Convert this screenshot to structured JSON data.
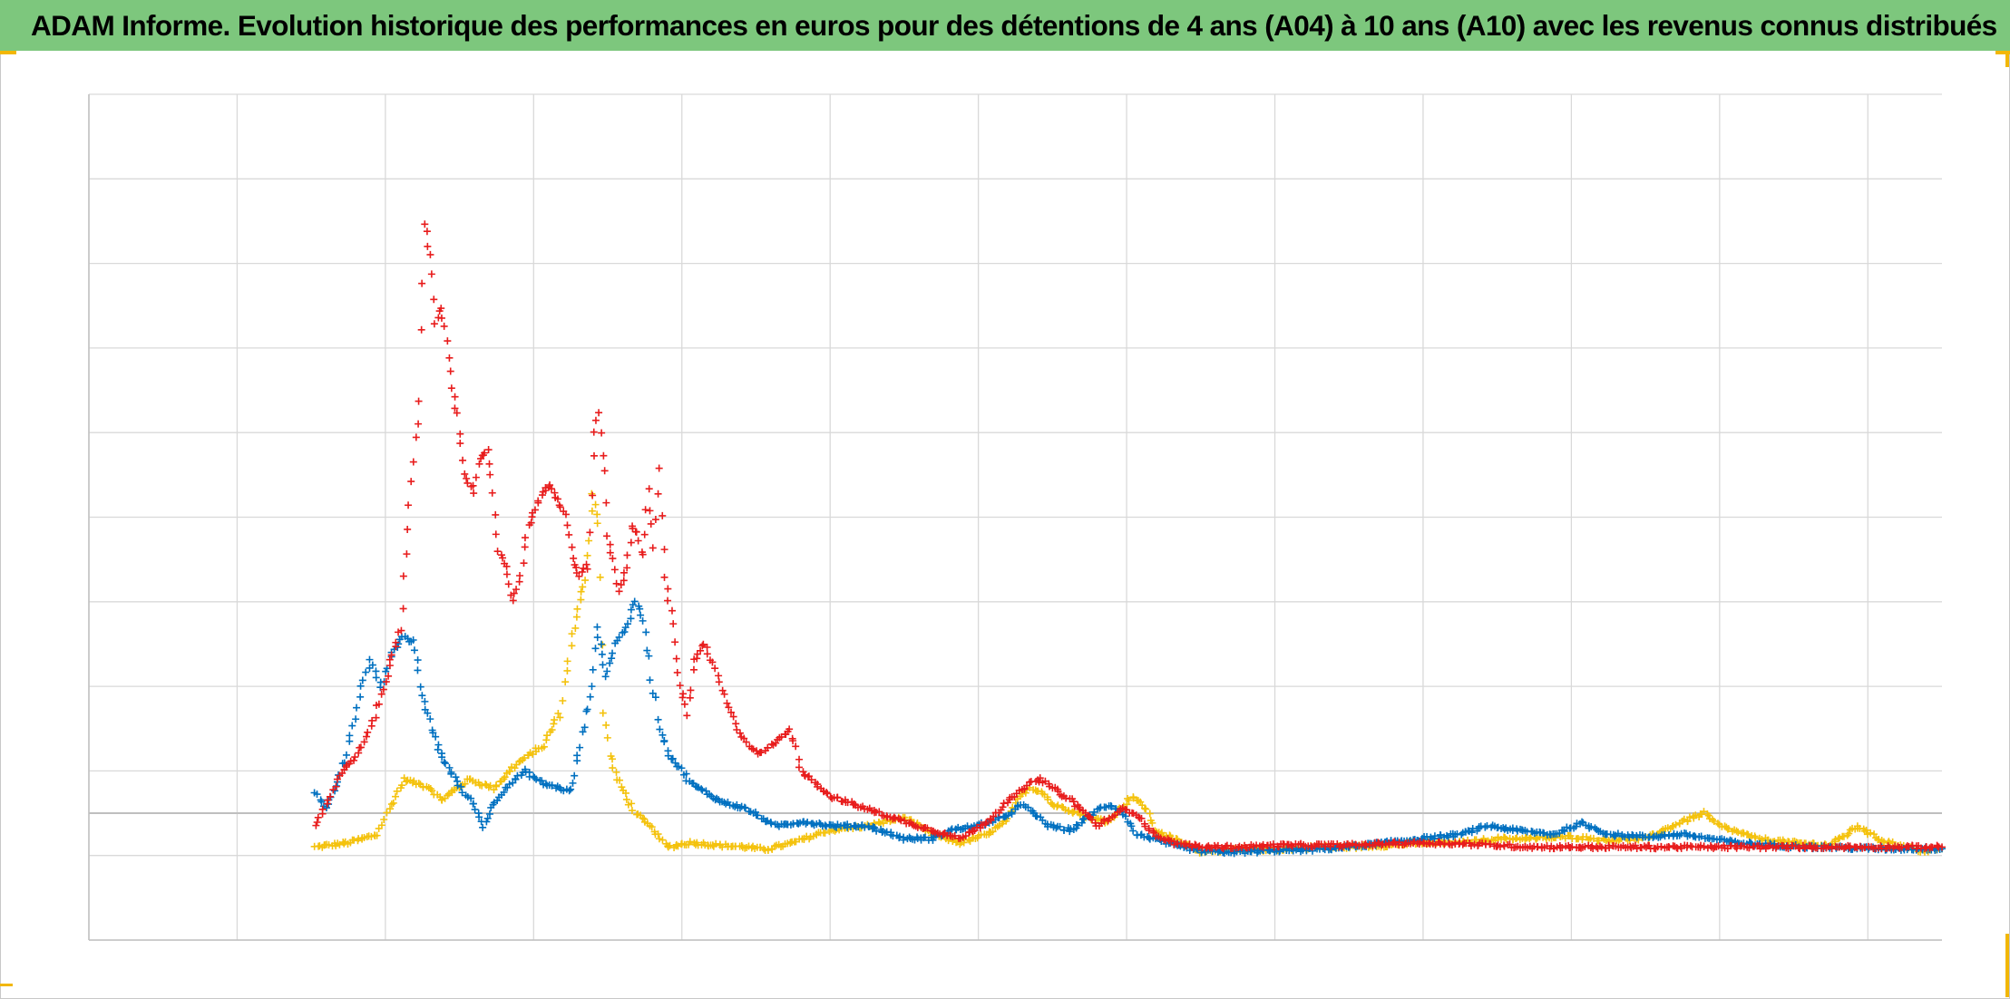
{
  "title": "ADAM Informe. Evolution historique des performances en euros pour des détentions de 4 ans (A04) à 10 ans (A10) avec les revenus connus distribués",
  "colors": {
    "title_bar": "#7dc77d",
    "grid": "#d9d9d9",
    "zero_line": "#bfbfbf",
    "corner_marks": "#f2b705"
  },
  "chart_data": {
    "type": "scatter",
    "marker": "plus",
    "title": "",
    "xlabel": "",
    "ylabel": "",
    "tick_labels_visible": false,
    "legend": "none",
    "grid": true,
    "xlim": [
      0,
      100
    ],
    "ylim": [
      -15,
      85
    ],
    "x_gridlines": [
      0,
      8,
      16,
      24,
      32,
      40,
      48,
      56,
      64,
      72,
      80,
      88,
      96
    ],
    "y_gridlines": [
      -15,
      -5,
      5,
      15,
      25,
      35,
      45,
      55,
      65,
      75,
      85
    ],
    "zero_line": 0,
    "series": [
      {
        "color": "#f4c20d",
        "points": [
          [
            12.2,
            -4.0
          ],
          [
            14,
            -3.5
          ],
          [
            15.6,
            -2.5
          ],
          [
            16.2,
            0.5
          ],
          [
            17.0,
            4.0
          ],
          [
            18.4,
            3.0
          ],
          [
            19.0,
            1.5
          ],
          [
            20.5,
            4.0
          ],
          [
            21.8,
            3.0
          ],
          [
            23.2,
            6.0
          ],
          [
            24.5,
            8.0
          ],
          [
            25.4,
            12.0
          ],
          [
            26.0,
            20.0
          ],
          [
            26.4,
            24.0
          ],
          [
            26.8,
            28.0
          ],
          [
            27.2,
            38.0
          ],
          [
            27.5,
            34.0
          ],
          [
            27.8,
            12.0
          ],
          [
            28.1,
            7.0
          ],
          [
            28.5,
            4.0
          ],
          [
            29.5,
            0.0
          ],
          [
            30.5,
            -2.0
          ],
          [
            31.2,
            -4.0
          ],
          [
            32.5,
            -3.5
          ],
          [
            34,
            -3.8
          ],
          [
            35.5,
            -4.0
          ],
          [
            36.5,
            -4.3
          ],
          [
            38,
            -3.5
          ],
          [
            40,
            -2.0
          ],
          [
            42,
            -1.5
          ],
          [
            44,
            -0.5
          ],
          [
            45.5,
            -2.5
          ],
          [
            47,
            -3.5
          ],
          [
            48.5,
            -2.5
          ],
          [
            49.5,
            -1.0
          ],
          [
            50.2,
            2.0
          ],
          [
            50.8,
            3.0
          ],
          [
            51.5,
            2.5
          ],
          [
            52,
            1.0
          ],
          [
            52.8,
            0.5
          ],
          [
            54,
            -0.5
          ],
          [
            55,
            -1.0
          ],
          [
            56.3,
            2.0
          ],
          [
            57.1,
            0.5
          ],
          [
            57.5,
            -2.0
          ],
          [
            58.5,
            -3.0
          ],
          [
            60,
            -4.5
          ],
          [
            62,
            -4.3
          ],
          [
            64,
            -4.3
          ],
          [
            66,
            -4.0
          ],
          [
            68,
            -4.0
          ],
          [
            70,
            -3.8
          ],
          [
            72,
            -3.5
          ],
          [
            74,
            -3.5
          ],
          [
            76,
            -3.0
          ],
          [
            78,
            -3.0
          ],
          [
            80,
            -2.8
          ],
          [
            82,
            -3.2
          ],
          [
            84,
            -3.0
          ],
          [
            86,
            -1.0
          ],
          [
            87.2,
            0.0
          ],
          [
            88,
            -1.5
          ],
          [
            90,
            -3.0
          ],
          [
            92,
            -3.5
          ],
          [
            94,
            -3.8
          ],
          [
            95.5,
            -1.5
          ],
          [
            96.5,
            -3.0
          ],
          [
            98,
            -4.0
          ],
          [
            99,
            -4.5
          ],
          [
            100,
            -4.2
          ]
        ]
      },
      {
        "color": "#0070c0",
        "points": [
          [
            12.2,
            2.5
          ],
          [
            12.8,
            0.5
          ],
          [
            13.3,
            3.0
          ],
          [
            14.0,
            8.0
          ],
          [
            14.6,
            14.0
          ],
          [
            15.2,
            18.0
          ],
          [
            15.8,
            15.0
          ],
          [
            16.4,
            19.0
          ],
          [
            16.9,
            21.0
          ],
          [
            17.5,
            20.0
          ],
          [
            18.0,
            14.0
          ],
          [
            18.5,
            10.0
          ],
          [
            19.0,
            7.0
          ],
          [
            19.5,
            5.0
          ],
          [
            20.2,
            2.5
          ],
          [
            20.8,
            1.0
          ],
          [
            21.3,
            -1.5
          ],
          [
            21.8,
            1.0
          ],
          [
            22.5,
            3.0
          ],
          [
            23.5,
            5.0
          ],
          [
            24.5,
            3.5
          ],
          [
            25.4,
            3.0
          ],
          [
            26.0,
            2.5
          ],
          [
            26.5,
            8.0
          ],
          [
            27.0,
            14.0
          ],
          [
            27.5,
            22.0
          ],
          [
            27.9,
            16.0
          ],
          [
            28.4,
            20.0
          ],
          [
            29.0,
            22.0
          ],
          [
            29.5,
            25.0
          ],
          [
            29.9,
            23.0
          ],
          [
            30.2,
            18.0
          ],
          [
            30.8,
            10.0
          ],
          [
            31.3,
            7.0
          ],
          [
            32.5,
            3.5
          ],
          [
            34,
            1.5
          ],
          [
            35.5,
            0.5
          ],
          [
            37,
            -1.5
          ],
          [
            38.5,
            -1.0
          ],
          [
            40,
            -1.5
          ],
          [
            42,
            -1.5
          ],
          [
            44,
            -3.0
          ],
          [
            45.5,
            -3.0
          ],
          [
            46.5,
            -2.0
          ],
          [
            48,
            -1.5
          ],
          [
            49.4,
            -0.5
          ],
          [
            50.3,
            1.0
          ],
          [
            51.0,
            0.0
          ],
          [
            51.8,
            -1.5
          ],
          [
            53,
            -2.0
          ],
          [
            54.5,
            0.5
          ],
          [
            55.1,
            1.0
          ],
          [
            55.8,
            0.0
          ],
          [
            56.5,
            -2.5
          ],
          [
            57.5,
            -3.0
          ],
          [
            58.5,
            -3.8
          ],
          [
            60,
            -4.5
          ],
          [
            62,
            -4.6
          ],
          [
            64,
            -4.4
          ],
          [
            66,
            -4.3
          ],
          [
            68,
            -4.0
          ],
          [
            70,
            -3.5
          ],
          [
            72,
            -3.0
          ],
          [
            74,
            -2.5
          ],
          [
            75.5,
            -1.5
          ],
          [
            77,
            -2.0
          ],
          [
            79,
            -2.5
          ],
          [
            80.6,
            -1.2
          ],
          [
            82,
            -2.5
          ],
          [
            84,
            -2.8
          ],
          [
            86,
            -2.5
          ],
          [
            87.5,
            -3.0
          ],
          [
            89,
            -3.5
          ],
          [
            91,
            -3.8
          ],
          [
            93,
            -4.0
          ],
          [
            95,
            -4.1
          ],
          [
            97,
            -4.2
          ],
          [
            99,
            -4.2
          ],
          [
            100,
            -4.2
          ]
        ]
      },
      {
        "color": "#e81c1c",
        "points": [
          [
            12.2,
            -1.5
          ],
          [
            12.8,
            1.0
          ],
          [
            13.5,
            4.5
          ],
          [
            14.5,
            7.0
          ],
          [
            15.2,
            10.0
          ],
          [
            15.8,
            14.0
          ],
          [
            16.3,
            18.0
          ],
          [
            16.8,
            22.0
          ],
          [
            17.2,
            34.0
          ],
          [
            17.5,
            42.0
          ],
          [
            17.8,
            48.0
          ],
          [
            18.1,
            70.0
          ],
          [
            18.4,
            66.0
          ],
          [
            18.7,
            58.0
          ],
          [
            19.0,
            60.0
          ],
          [
            19.3,
            56.0
          ],
          [
            19.6,
            50.0
          ],
          [
            19.9,
            47.0
          ],
          [
            20.3,
            40.0
          ],
          [
            20.7,
            38.0
          ],
          [
            21.1,
            42.0
          ],
          [
            21.5,
            43.0
          ],
          [
            21.8,
            38.0
          ],
          [
            22.1,
            31.0
          ],
          [
            22.5,
            29.0
          ],
          [
            22.9,
            25.0
          ],
          [
            23.3,
            28.0
          ],
          [
            23.7,
            34.0
          ],
          [
            24.1,
            36.0
          ],
          [
            24.5,
            38.0
          ],
          [
            24.9,
            39.0
          ],
          [
            25.3,
            37.0
          ],
          [
            25.7,
            35.0
          ],
          [
            26.1,
            30.0
          ],
          [
            26.5,
            28.0
          ],
          [
            26.9,
            30.0
          ],
          [
            27.3,
            45.0
          ],
          [
            27.5,
            48.0
          ],
          [
            27.8,
            40.0
          ],
          [
            28.0,
            33.0
          ],
          [
            28.3,
            30.0
          ],
          [
            28.6,
            26.0
          ],
          [
            29.0,
            29.0
          ],
          [
            29.3,
            34.0
          ],
          [
            29.6,
            33.0
          ],
          [
            29.9,
            30.0
          ],
          [
            30.2,
            38.0
          ],
          [
            30.5,
            32.0
          ],
          [
            30.8,
            40.0
          ],
          [
            31.1,
            28.0
          ],
          [
            31.5,
            22.0
          ],
          [
            31.9,
            15.0
          ],
          [
            32.3,
            12.0
          ],
          [
            32.7,
            18.0
          ],
          [
            33.2,
            20.0
          ],
          [
            33.8,
            17.0
          ],
          [
            34.4,
            13.0
          ],
          [
            35.0,
            10.0
          ],
          [
            35.6,
            8.0
          ],
          [
            36.2,
            7.0
          ],
          [
            36.8,
            8.0
          ],
          [
            37.4,
            9.0
          ],
          [
            37.8,
            10.0
          ],
          [
            38.5,
            5.0
          ],
          [
            40,
            2.0
          ],
          [
            42,
            0.5
          ],
          [
            44,
            -1.0
          ],
          [
            45.5,
            -2.0
          ],
          [
            47,
            -3.0
          ],
          [
            48.5,
            -1.0
          ],
          [
            49.4,
            1.0
          ],
          [
            50.2,
            2.5
          ],
          [
            50.8,
            3.5
          ],
          [
            51.4,
            4.0
          ],
          [
            52,
            3.0
          ],
          [
            53,
            1.5
          ],
          [
            54.5,
            -1.5
          ],
          [
            55.1,
            -0.5
          ],
          [
            55.8,
            0.5
          ],
          [
            56.5,
            0.0
          ],
          [
            57.5,
            -2.5
          ],
          [
            58.5,
            -3.5
          ],
          [
            60,
            -4.0
          ],
          [
            62,
            -4.0
          ],
          [
            64,
            -3.8
          ],
          [
            66,
            -3.8
          ],
          [
            68,
            -3.8
          ],
          [
            70,
            -3.6
          ],
          [
            72,
            -3.5
          ],
          [
            74,
            -3.6
          ],
          [
            76,
            -3.8
          ],
          [
            78,
            -4.0
          ],
          [
            80,
            -4.0
          ],
          [
            82,
            -4.0
          ],
          [
            84,
            -4.0
          ],
          [
            86,
            -4.0
          ],
          [
            88,
            -4.0
          ],
          [
            90,
            -4.0
          ],
          [
            92,
            -4.0
          ],
          [
            94,
            -4.0
          ],
          [
            96,
            -4.0
          ],
          [
            98,
            -4.0
          ],
          [
            100,
            -4.0
          ]
        ]
      }
    ]
  }
}
